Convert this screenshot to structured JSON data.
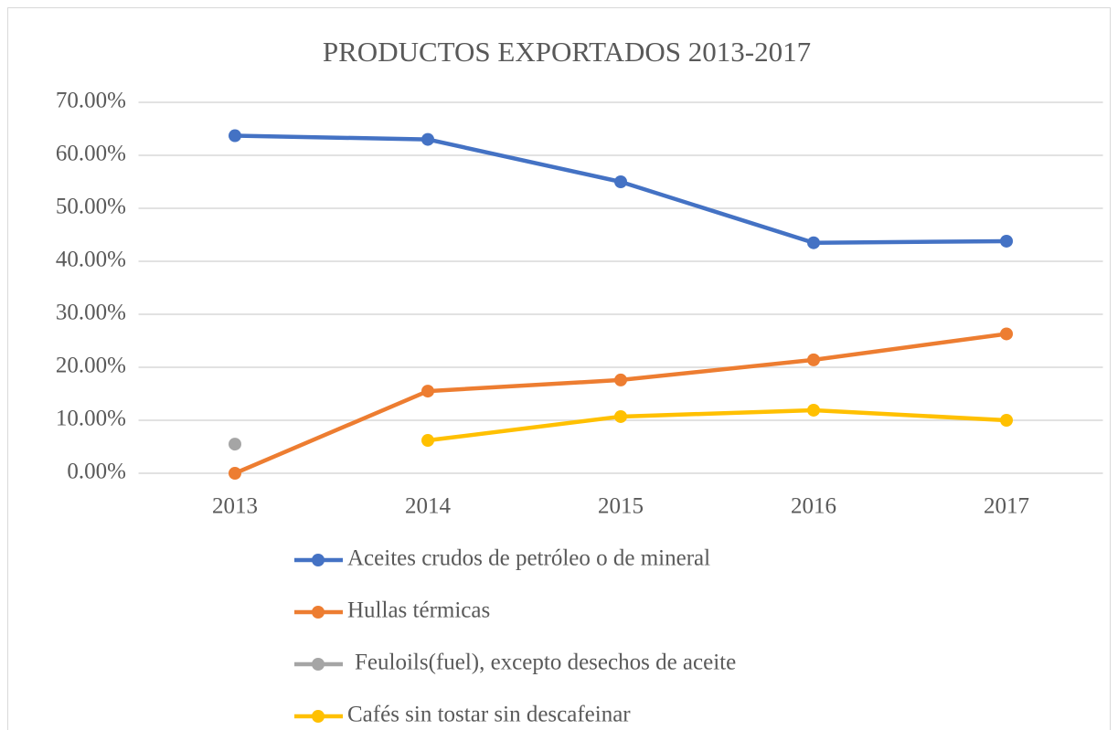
{
  "chart_data": {
    "type": "line",
    "title": "PRODUCTOS EXPORTADOS  2013-2017",
    "categories": [
      "2013",
      "2014",
      "2015",
      "2016",
      "2017"
    ],
    "series": [
      {
        "name": "Aceites crudos de petróleo o de mineral",
        "color": "#4472c4",
        "values": [
          63.7,
          63.0,
          55.0,
          43.5,
          43.8
        ]
      },
      {
        "name": "Hullas térmicas",
        "color": "#ed7d31",
        "values": [
          0.0,
          15.5,
          17.6,
          21.4,
          26.3
        ]
      },
      {
        "name": "Feuloils(fuel), excepto desechos de aceite",
        "color": "#a5a5a5",
        "values": [
          5.5,
          null,
          null,
          null,
          null
        ]
      },
      {
        "name": "Cafés sin tostar sin descafeinar",
        "color": "#ffc000",
        "values": [
          null,
          6.2,
          10.7,
          11.9,
          10.0
        ]
      }
    ],
    "ylim": [
      0,
      70
    ],
    "yticks": [
      {
        "value": 0,
        "label": "0.00%"
      },
      {
        "value": 10,
        "label": "10.00%"
      },
      {
        "value": 20,
        "label": "20.00%"
      },
      {
        "value": 30,
        "label": "30.00%"
      },
      {
        "value": 40,
        "label": "40.00%"
      },
      {
        "value": 50,
        "label": "50.00%"
      },
      {
        "value": 60,
        "label": "60.00%"
      },
      {
        "value": 70,
        "label": "70.00%"
      }
    ],
    "grid": true,
    "legend": "bottom"
  }
}
